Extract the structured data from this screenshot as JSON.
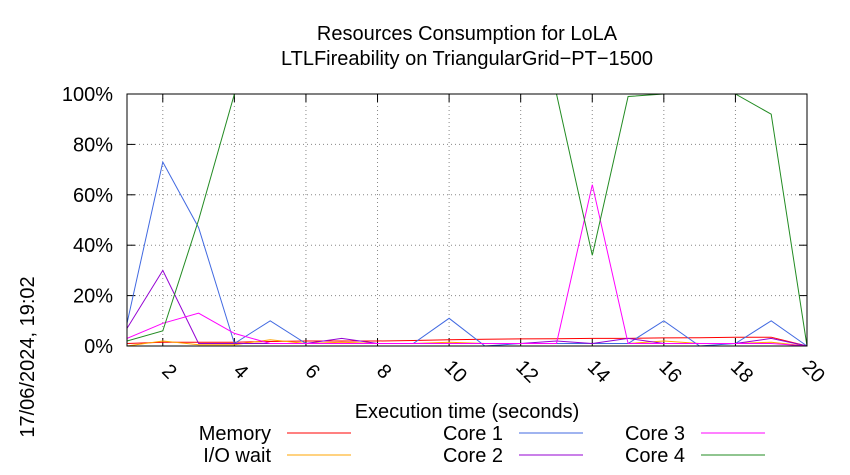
{
  "chart_data": {
    "type": "line",
    "title": "Resources Consumption for LoLA",
    "subtitle": "LTLFireability on TriangularGrid−PT−1500",
    "xlabel": "Execution time (seconds)",
    "ylabel": "",
    "side_label": "17/06/2024, 19:02",
    "xlim": [
      1,
      20
    ],
    "ylim": [
      0,
      100
    ],
    "x_ticks": [
      2,
      4,
      6,
      8,
      10,
      12,
      14,
      16,
      18,
      20
    ],
    "y_ticks": [
      0,
      20,
      40,
      60,
      80,
      100
    ],
    "y_tick_suffix": "%",
    "grid": true,
    "legend_position": "bottom",
    "x": [
      1,
      2,
      3,
      4,
      5,
      6,
      7,
      8,
      9,
      10,
      11,
      12,
      13,
      14,
      15,
      16,
      17,
      18,
      19,
      20
    ],
    "series": [
      {
        "name": "Memory",
        "color": "#ff0000",
        "values": [
          1,
          1.5,
          1.5,
          1.5,
          1.8,
          2,
          2,
          2,
          2.2,
          2.5,
          2.7,
          2.8,
          2.9,
          3,
          3,
          3.2,
          3.3,
          3.5,
          3.5,
          0
        ]
      },
      {
        "name": "I/O wait",
        "color": "#ffa500",
        "values": [
          0,
          2,
          0.5,
          0.5,
          2.5,
          1,
          1.5,
          1,
          1,
          1.5,
          1,
          1,
          1,
          1,
          1,
          2,
          1,
          1,
          1.5,
          0
        ]
      },
      {
        "name": "Core 1",
        "color": "#4169e1",
        "values": [
          9,
          73,
          47,
          1,
          10,
          1,
          1,
          1,
          1,
          11,
          0,
          1,
          1,
          1,
          1,
          10,
          0,
          1,
          10,
          0
        ]
      },
      {
        "name": "Core 2",
        "color": "#9400d3",
        "values": [
          7,
          30,
          1,
          1,
          1,
          1,
          3,
          1,
          1,
          1,
          1,
          1,
          2,
          1,
          3,
          1,
          1,
          1,
          3,
          0
        ]
      },
      {
        "name": "Core 3",
        "color": "#ff00ff",
        "values": [
          3,
          9,
          13,
          5,
          1,
          1,
          1,
          1,
          1,
          1,
          1,
          1,
          1,
          64,
          1,
          1,
          1,
          1,
          1,
          0
        ]
      },
      {
        "name": "Core 4",
        "color": "#228b22",
        "values": [
          2,
          6,
          50,
          100,
          100,
          100,
          100,
          100,
          100,
          100,
          100,
          100,
          100,
          36,
          99,
          100,
          100,
          100,
          92,
          0
        ]
      }
    ]
  }
}
